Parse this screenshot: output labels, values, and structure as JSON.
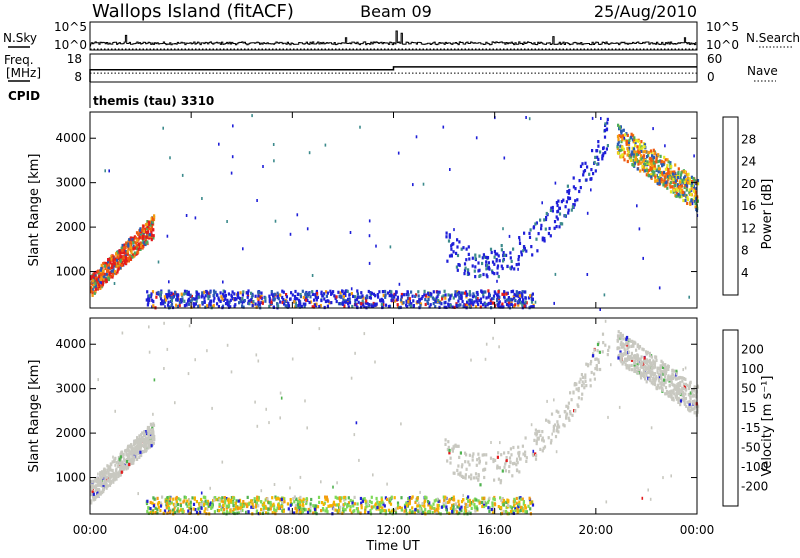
{
  "header": {
    "station": "Wallops Island (fitACF)",
    "beam": "Beam 09",
    "date": "25/Aug/2010"
  },
  "nsky_panel": {
    "label": "N.Sky",
    "tick_top": "10^5",
    "tick_bottom": "10^0",
    "right_label": "N.Search",
    "right_tick_top": "10^5",
    "right_tick_bottom": "10^0"
  },
  "freq_panel": {
    "label_line1": "Freq.",
    "label_line2": "[MHz]",
    "tick_top": "18",
    "tick_bottom": "8",
    "right_label": "Nave",
    "right_tick_top": "60",
    "right_tick_bottom": "0"
  },
  "cpid_panel": {
    "label": "CPID",
    "value": "themis (tau) 3310"
  },
  "power_panel": {
    "ylabel": "Slant Range [km]",
    "colorbar_label": "Power [dB]"
  },
  "velocity_panel": {
    "ylabel": "Slant Range [km]",
    "colorbar_label": "Velocity [m s⁻¹]"
  },
  "xlabel": "Time UT",
  "chart_data": [
    {
      "type": "line",
      "name": "N.Sky / N.Search",
      "x_range_hours": [
        0,
        24
      ],
      "ylim_log10": [
        0,
        5
      ],
      "nsky_typical_log10": 1.2,
      "nsky_spikes": [
        {
          "t": 1.4,
          "v": 2.6
        },
        {
          "t": 10.1,
          "v": 2.2
        },
        {
          "t": 12.1,
          "v": 3.4
        },
        {
          "t": 12.3,
          "v": 3.0
        },
        {
          "t": 18.3,
          "v": 2.4
        },
        {
          "t": 23.5,
          "v": 2.2
        }
      ],
      "nsearch_log10": 0
    },
    {
      "type": "line",
      "name": "Freq / Nave",
      "x_range_hours": [
        0,
        24
      ],
      "freq_ylim": [
        8,
        18
      ],
      "freq_steps": [
        {
          "t": 0.0,
          "v": 12.4
        },
        {
          "t": 12.0,
          "v": 12.4
        },
        {
          "t": 12.0,
          "v": 13.4
        },
        {
          "t": 24.0,
          "v": 13.4
        }
      ],
      "nave_ylim": [
        0,
        60
      ],
      "nave_value": 19
    },
    {
      "type": "heatmap",
      "title": "Power",
      "xlabel": "Time UT",
      "ylabel": "Slant Range [km]",
      "x_ticks": [
        "00:00",
        "04:00",
        "08:00",
        "12:00",
        "16:00",
        "20:00",
        "00:00"
      ],
      "x_tick_hours": [
        0,
        4,
        8,
        12,
        16,
        20,
        24
      ],
      "y_ticks": [
        1000,
        2000,
        3000,
        4000
      ],
      "ylim": [
        180,
        4590
      ],
      "colorbar": {
        "label": "Power [dB]",
        "ticks": [
          4,
          8,
          12,
          16,
          20,
          24,
          28
        ],
        "range": [
          0,
          32
        ],
        "colors": [
          "#1f1fd8",
          "#2a5ab4",
          "#3c8a8c",
          "#4caa5a",
          "#e8e81f",
          "#f39c12",
          "#ef5a10",
          "#e31a1c"
        ]
      },
      "echo_regions": [
        {
          "name": "near-range scatter",
          "t0": 0.0,
          "t1": 2.5,
          "r0": 600,
          "r1": 2300,
          "level": "high"
        },
        {
          "name": "ground band",
          "t0": 2.2,
          "t1": 17.5,
          "r0": 220,
          "r1": 600,
          "level": "low-mid"
        },
        {
          "name": "arc",
          "t0": 14.0,
          "t1": 20.5,
          "r0": 1100,
          "r1": 4200,
          "level": "low"
        },
        {
          "name": "late scatter",
          "t0": 20.8,
          "t1": 24.0,
          "r0": 2200,
          "r1": 4000,
          "level": "mid-high"
        }
      ]
    },
    {
      "type": "heatmap",
      "title": "Velocity",
      "xlabel": "Time UT",
      "ylabel": "Slant Range [km]",
      "x_ticks": [
        "00:00",
        "04:00",
        "08:00",
        "12:00",
        "16:00",
        "20:00",
        "00:00"
      ],
      "x_tick_hours": [
        0,
        4,
        8,
        12,
        16,
        20,
        24
      ],
      "y_ticks": [
        1000,
        2000,
        3000,
        4000
      ],
      "ylim": [
        180,
        4590
      ],
      "colorbar": {
        "label": "Velocity [m s⁻¹]",
        "ticks": [
          200,
          100,
          50,
          15,
          -15,
          -50,
          -100,
          -200
        ],
        "colors": [
          "#1f1fd8",
          "#2f5fd0",
          "#4fb24f",
          "#7ed957",
          "#c8c8c0",
          "#f4b400",
          "#f39c12",
          "#ef5a10",
          "#e31a1c"
        ]
      },
      "echo_regions": [
        {
          "name": "ground scatter",
          "t0": 0.0,
          "t1": 2.5,
          "r0": 600,
          "r1": 2300,
          "color": "gray"
        },
        {
          "name": "ground band",
          "t0": 2.2,
          "t1": 17.5,
          "r0": 220,
          "r1": 600,
          "color": "green/orange"
        },
        {
          "name": "arc",
          "t0": 14.0,
          "t1": 20.5,
          "r0": 1100,
          "r1": 4200,
          "color": "gray"
        },
        {
          "name": "late ground scatter",
          "t0": 20.8,
          "t1": 24.0,
          "r0": 2200,
          "r1": 4000,
          "color": "gray"
        }
      ]
    }
  ]
}
